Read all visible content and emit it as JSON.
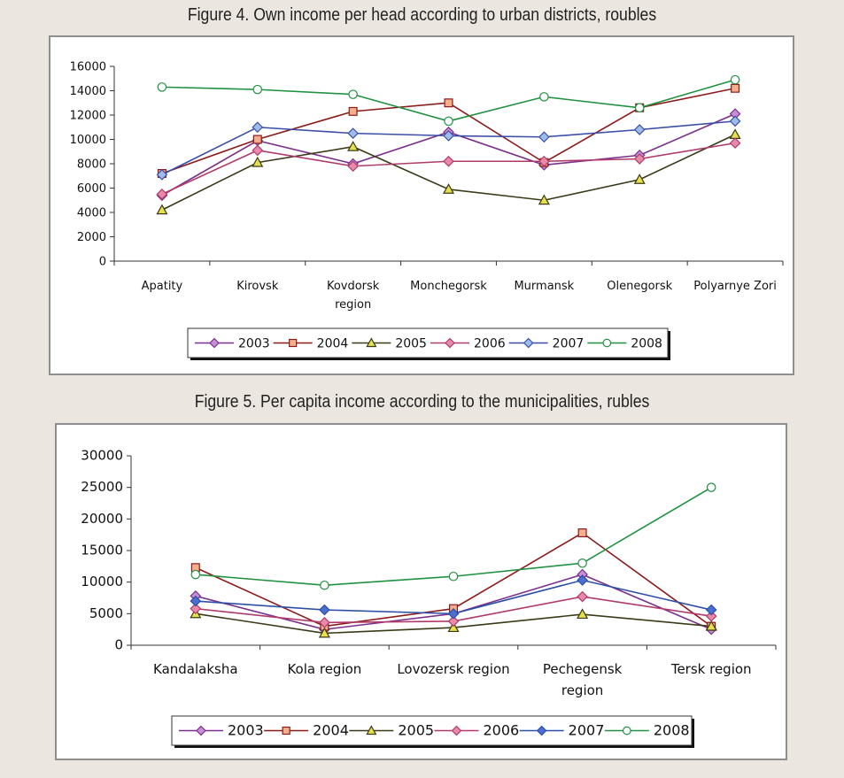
{
  "chart_data": [
    {
      "type": "line",
      "title": "Figure 4. Own income per head according to urban districts, roubles",
      "categories": [
        "Apatity",
        "Kirovsk",
        "Kovdorsk region",
        "Monchegorsk",
        "Murmansk",
        "Olenegorsk",
        "Polyarnye Zori"
      ],
      "category_lines": [
        [
          "Apatity"
        ],
        [
          "Kirovsk"
        ],
        [
          "Kovdorsk",
          "region"
        ],
        [
          "Monchegorsk"
        ],
        [
          "Murmansk"
        ],
        [
          "Olenegorsk"
        ],
        [
          "Polyarnye Zori"
        ]
      ],
      "ylim": [
        0,
        16000
      ],
      "yticks": [
        0,
        2000,
        4000,
        6000,
        8000,
        10000,
        12000,
        14000,
        16000
      ],
      "legend_position": "bottom",
      "grid": false,
      "series": [
        {
          "name": "2003",
          "marker": "diamond",
          "color": "#7b2f8c",
          "fill": "#c58fd6",
          "values": [
            5400,
            9900,
            8000,
            10600,
            7900,
            8700,
            12100
          ]
        },
        {
          "name": "2004",
          "marker": "square",
          "color": "#8b1a1a",
          "fill": "#f4b08c",
          "values": [
            7200,
            10000,
            12300,
            13000,
            8100,
            12600,
            14200
          ]
        },
        {
          "name": "2005",
          "marker": "triangle",
          "color": "#3a3a18",
          "fill": "#e6e14a",
          "values": [
            4200,
            8100,
            9400,
            5900,
            5000,
            6700,
            10400
          ]
        },
        {
          "name": "2006",
          "marker": "diamond",
          "color": "#b03a6a",
          "fill": "#e88aa8",
          "values": [
            5500,
            9100,
            7800,
            8200,
            8200,
            8400,
            9700
          ]
        },
        {
          "name": "2007",
          "marker": "diamond",
          "color": "#3a4ea8",
          "fill": "#9dbde8",
          "values": [
            7100,
            11000,
            10500,
            10300,
            10200,
            10800,
            11500
          ]
        },
        {
          "name": "2008",
          "marker": "circle",
          "color": "#1f9140",
          "fill": "#ffffff",
          "values": [
            14300,
            14100,
            13700,
            11500,
            13500,
            12600,
            14900
          ]
        }
      ]
    },
    {
      "type": "line",
      "title": "Figure 5. Per capita income according to the municipalities, rubles",
      "categories": [
        "Kandalaksha",
        "Kola region",
        "Lovozersk region",
        "Pechegensk region",
        "Tersk region"
      ],
      "category_lines": [
        [
          "Kandalaksha"
        ],
        [
          "Kola region"
        ],
        [
          "Lovozersk region"
        ],
        [
          "Pechegensk",
          "region"
        ],
        [
          "Tersk region"
        ]
      ],
      "ylim": [
        0,
        30000
      ],
      "yticks": [
        0,
        5000,
        10000,
        15000,
        20000,
        25000,
        30000
      ],
      "legend_position": "bottom",
      "grid": false,
      "series": [
        {
          "name": "2003",
          "marker": "diamond",
          "color": "#7b2f8c",
          "fill": "#c58fd6",
          "values": [
            7800,
            2500,
            5000,
            11200,
            2500
          ]
        },
        {
          "name": "2004",
          "marker": "square",
          "color": "#8b1a1a",
          "fill": "#f4b08c",
          "values": [
            12300,
            3000,
            5800,
            17800,
            3000
          ]
        },
        {
          "name": "2005",
          "marker": "triangle",
          "color": "#3a3a18",
          "fill": "#e6e14a",
          "values": [
            5000,
            1900,
            2800,
            4900,
            3000
          ]
        },
        {
          "name": "2006",
          "marker": "diamond",
          "color": "#b03a6a",
          "fill": "#e88aa8",
          "values": [
            5800,
            3600,
            3800,
            7700,
            4600
          ]
        },
        {
          "name": "2007",
          "marker": "diamond",
          "color": "#2e4fa8",
          "fill": "#4a6fd0",
          "values": [
            7000,
            5600,
            5000,
            10300,
            5600
          ]
        },
        {
          "name": "2008",
          "marker": "circle",
          "color": "#1f9140",
          "fill": "#ffffff",
          "values": [
            11200,
            9500,
            10900,
            13000,
            25000
          ]
        }
      ]
    }
  ]
}
